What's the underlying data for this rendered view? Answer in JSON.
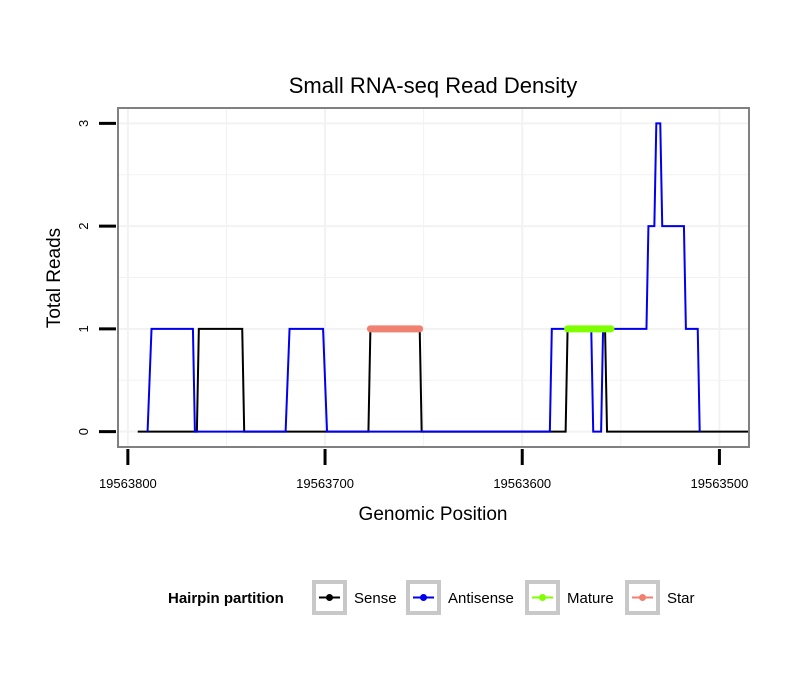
{
  "chart_data": {
    "type": "line",
    "title": "Small RNA-seq Read Density",
    "xlabel": "Genomic Position",
    "ylabel": "Total Reads",
    "xlim": [
      19563805,
      19563485
    ],
    "ylim": [
      -0.15,
      3.15
    ],
    "x_reversed": true,
    "x_ticks": [
      19563800,
      19563700,
      19563600,
      19563500
    ],
    "x_tick_labels": [
      "19563800",
      "19563700",
      "19563600",
      "19563500"
    ],
    "y_ticks": [
      0,
      1,
      2,
      3
    ],
    "y_tick_labels": [
      "0",
      "1",
      "2",
      "3"
    ],
    "grid": true,
    "legend": {
      "title": "Hairpin partition",
      "position": "bottom",
      "entries": [
        "Sense",
        "Antisense",
        "Mature",
        "Star"
      ]
    },
    "series": [
      {
        "name": "Sense",
        "color": "#000000",
        "x": [
          19563795,
          19563765,
          19563764,
          19563742,
          19563741,
          19563715,
          19563714,
          19563678,
          19563677,
          19563652,
          19563651,
          19563578,
          19563577,
          19563558,
          19563557,
          19563485
        ],
        "y": [
          0,
          0,
          1,
          1,
          0,
          0,
          0,
          0,
          1,
          1,
          0,
          0,
          1,
          1,
          0,
          0
        ]
      },
      {
        "name": "Antisense",
        "color": "#0000ee",
        "x": [
          19563790,
          19563788,
          19563767,
          19563766,
          19563720,
          19563718,
          19563701,
          19563699,
          19563586,
          19563585,
          19563565,
          19563564,
          19563560,
          19563559,
          19563537,
          19563536,
          19563533,
          19563532,
          19563530,
          19563529,
          19563518,
          19563517,
          19563511,
          19563510
        ],
        "y": [
          0,
          1,
          1,
          0,
          0,
          1,
          1,
          0,
          0,
          1,
          1,
          0,
          0,
          1,
          1,
          2,
          2,
          3,
          3,
          2,
          2,
          1,
          1,
          0
        ]
      }
    ],
    "regions": [
      {
        "name": "Star",
        "color": "#f08070",
        "x": [
          19563677,
          19563652
        ],
        "y": 1
      },
      {
        "name": "Mature",
        "color": "#7fff00",
        "x": [
          19563577,
          19563555
        ],
        "y": 1
      }
    ]
  },
  "legend_colors": {
    "Sense": "#000000",
    "Antisense": "#0000ee",
    "Mature": "#7fff00",
    "Star": "#f08070"
  },
  "frame_color": "#808080",
  "grid_color": "#f2f2f2"
}
